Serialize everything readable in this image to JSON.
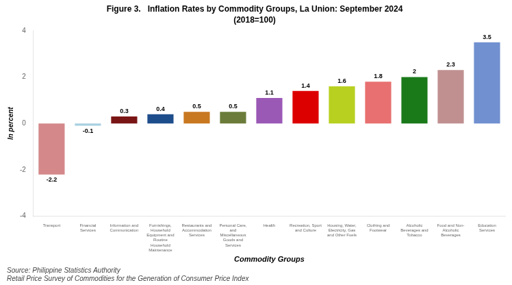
{
  "chart_data": {
    "type": "bar",
    "title": "Figure 3.   Inflation Rates by Commodity Groups, La Union: September 2024",
    "subtitle": "(2018=100)",
    "categories": [
      "Transport",
      "Financial\nServices",
      "Information and\nCommunication",
      "Furnishings,\nHousehold\nEquipment and\nRoutine\nHousehold\nMaintenance",
      "Restaurants and\nAccommodation\nServices",
      "Personal Care,\nand\nMiscellaneous\nGoods and\nServices",
      "Health",
      "Recreation, Sport\nand Culture",
      "Housing, Water,\nElectricity, Gas\nand Other Fuels",
      "Clothing and\nFootwear",
      "Alcoholic\nBeverages and\nTobacco",
      "Food and Non-\nAlcoholic\nBeverages",
      "Education\nServices"
    ],
    "values": [
      -2.2,
      -0.1,
      0.3,
      0.4,
      0.5,
      0.5,
      1.1,
      1.4,
      1.6,
      1.8,
      2.0,
      2.3,
      3.5
    ],
    "colors": [
      "#d4888a",
      "#a8d0e0",
      "#7a1515",
      "#1e4d8c",
      "#c87820",
      "#6b7c3a",
      "#9b59b6",
      "#dd0000",
      "#b8d020",
      "#e87070",
      "#1a7a1a",
      "#c09090",
      "#7090d0"
    ],
    "ylabel": "In percent",
    "xlabel": "Commodity Groups",
    "ylim": [
      -4.0,
      4.0
    ],
    "yticks": [
      -4.0,
      -2.0,
      0.0,
      2.0,
      4.0
    ],
    "grid": false,
    "data_labels": true,
    "annotations": [
      "Source: Philippine Statistics Authority",
      "Retail Price Survey of Commodities for the Generation of Consumer Price Index"
    ]
  }
}
